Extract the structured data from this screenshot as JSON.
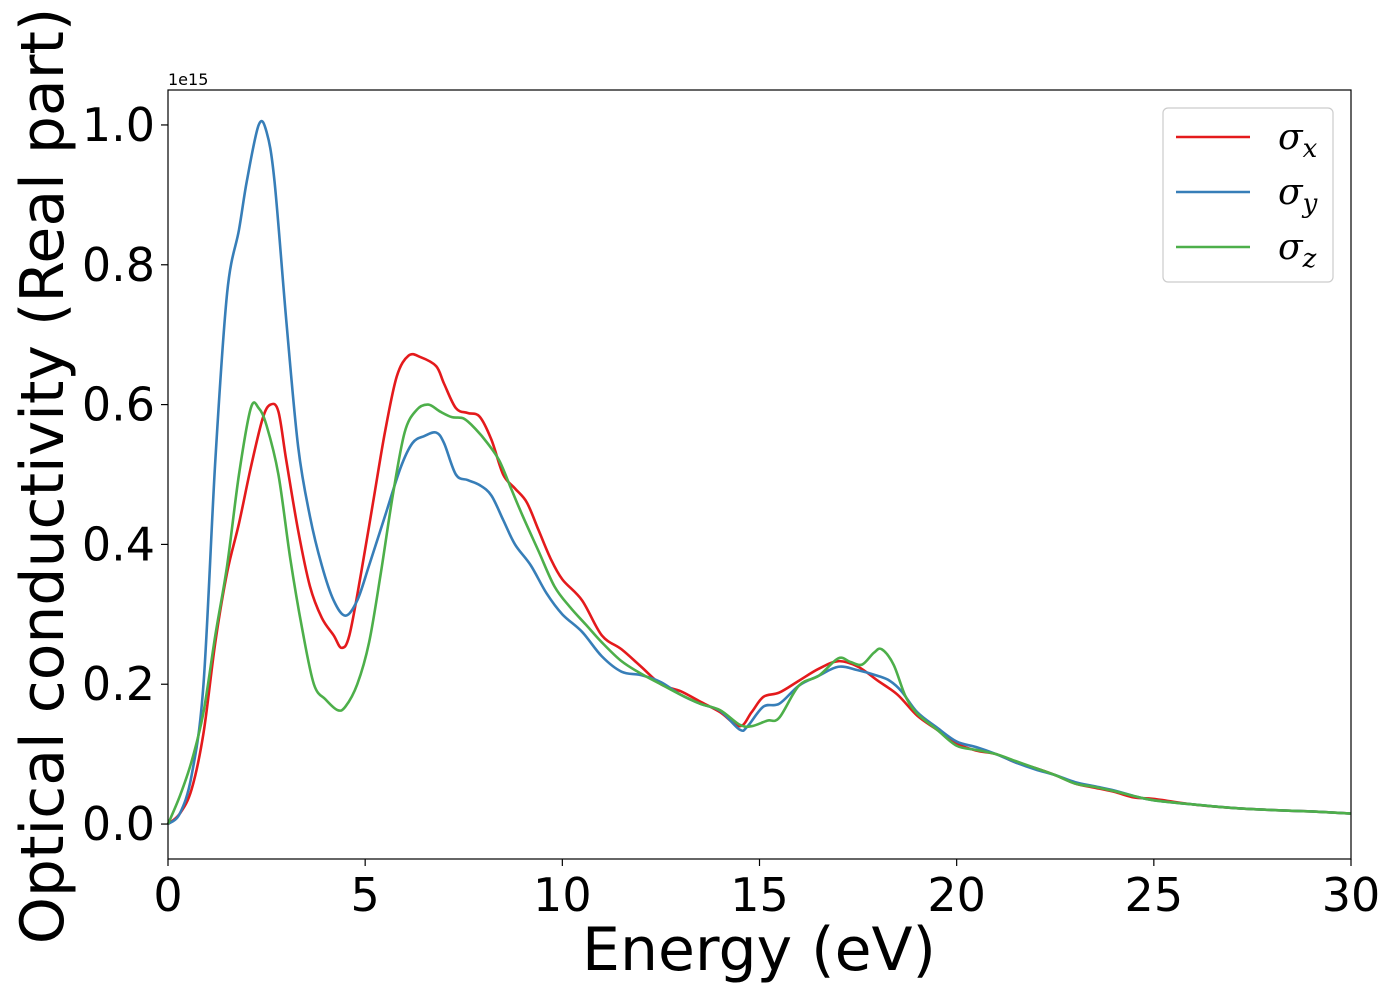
{
  "chart_data": {
    "type": "line",
    "xlabel": "Energy (eV)",
    "ylabel": "Optical conductivity (Real part)",
    "y_offset_text": "1e15",
    "xlim": [
      0,
      30
    ],
    "ylim": [
      -0.05,
      1.05
    ],
    "y_scale_note": "values in units of 1e15",
    "x_ticks": [
      "0",
      "5",
      "10",
      "15",
      "20",
      "25",
      "30"
    ],
    "y_ticks": [
      "0.0",
      "0.2",
      "0.4",
      "0.6",
      "0.8",
      "1.0"
    ],
    "grid": false,
    "legend_position": "top-right",
    "series": [
      {
        "name": "σx",
        "symbol": "σ",
        "sub": "x",
        "color": "#e41a1c",
        "points": [
          [
            0,
            0
          ],
          [
            0.3,
            0.015
          ],
          [
            0.6,
            0.05
          ],
          [
            0.9,
            0.13
          ],
          [
            1.2,
            0.26
          ],
          [
            1.5,
            0.36
          ],
          [
            1.8,
            0.43
          ],
          [
            2.1,
            0.51
          ],
          [
            2.4,
            0.58
          ],
          [
            2.6,
            0.6
          ],
          [
            2.8,
            0.59
          ],
          [
            3.0,
            0.52
          ],
          [
            3.3,
            0.42
          ],
          [
            3.6,
            0.34
          ],
          [
            3.9,
            0.295
          ],
          [
            4.2,
            0.27
          ],
          [
            4.4,
            0.252
          ],
          [
            4.6,
            0.27
          ],
          [
            4.9,
            0.36
          ],
          [
            5.2,
            0.46
          ],
          [
            5.5,
            0.56
          ],
          [
            5.8,
            0.64
          ],
          [
            6.1,
            0.67
          ],
          [
            6.4,
            0.668
          ],
          [
            6.8,
            0.655
          ],
          [
            7.0,
            0.63
          ],
          [
            7.3,
            0.595
          ],
          [
            7.6,
            0.588
          ],
          [
            7.9,
            0.583
          ],
          [
            8.2,
            0.55
          ],
          [
            8.5,
            0.5
          ],
          [
            8.8,
            0.48
          ],
          [
            9.1,
            0.46
          ],
          [
            9.4,
            0.42
          ],
          [
            9.7,
            0.38
          ],
          [
            10,
            0.35
          ],
          [
            10.5,
            0.32
          ],
          [
            11,
            0.27
          ],
          [
            11.5,
            0.25
          ],
          [
            12,
            0.225
          ],
          [
            12.5,
            0.2
          ],
          [
            13,
            0.19
          ],
          [
            13.5,
            0.175
          ],
          [
            14,
            0.16
          ],
          [
            14.5,
            0.14
          ],
          [
            14.8,
            0.16
          ],
          [
            15.1,
            0.182
          ],
          [
            15.5,
            0.188
          ],
          [
            16,
            0.205
          ],
          [
            16.5,
            0.222
          ],
          [
            17,
            0.233
          ],
          [
            17.5,
            0.225
          ],
          [
            18,
            0.205
          ],
          [
            18.5,
            0.185
          ],
          [
            19,
            0.155
          ],
          [
            19.5,
            0.135
          ],
          [
            20,
            0.115
          ],
          [
            20.5,
            0.105
          ],
          [
            21,
            0.1
          ],
          [
            21.5,
            0.088
          ],
          [
            22,
            0.08
          ],
          [
            22.5,
            0.07
          ],
          [
            23,
            0.058
          ],
          [
            23.5,
            0.052
          ],
          [
            24,
            0.046
          ],
          [
            24.5,
            0.038
          ],
          [
            25,
            0.036
          ],
          [
            26,
            0.028
          ],
          [
            27,
            0.023
          ],
          [
            28,
            0.02
          ],
          [
            29,
            0.018
          ],
          [
            30,
            0.015
          ]
        ]
      },
      {
        "name": "σy",
        "symbol": "σ",
        "sub": "y",
        "color": "#377eb8",
        "points": [
          [
            0,
            0
          ],
          [
            0.3,
            0.015
          ],
          [
            0.6,
            0.07
          ],
          [
            0.9,
            0.2
          ],
          [
            1.2,
            0.52
          ],
          [
            1.5,
            0.76
          ],
          [
            1.8,
            0.85
          ],
          [
            2.0,
            0.92
          ],
          [
            2.3,
            1.0
          ],
          [
            2.5,
            0.99
          ],
          [
            2.7,
            0.92
          ],
          [
            3.0,
            0.72
          ],
          [
            3.3,
            0.54
          ],
          [
            3.6,
            0.44
          ],
          [
            3.9,
            0.37
          ],
          [
            4.2,
            0.32
          ],
          [
            4.5,
            0.298
          ],
          [
            4.8,
            0.32
          ],
          [
            5.1,
            0.37
          ],
          [
            5.5,
            0.44
          ],
          [
            5.9,
            0.51
          ],
          [
            6.2,
            0.545
          ],
          [
            6.5,
            0.555
          ],
          [
            6.8,
            0.56
          ],
          [
            7.0,
            0.545
          ],
          [
            7.3,
            0.5
          ],
          [
            7.6,
            0.492
          ],
          [
            7.9,
            0.485
          ],
          [
            8.2,
            0.47
          ],
          [
            8.5,
            0.435
          ],
          [
            8.8,
            0.4
          ],
          [
            9.2,
            0.37
          ],
          [
            9.6,
            0.33
          ],
          [
            10,
            0.3
          ],
          [
            10.5,
            0.275
          ],
          [
            11,
            0.24
          ],
          [
            11.5,
            0.218
          ],
          [
            12,
            0.213
          ],
          [
            12.5,
            0.203
          ],
          [
            13,
            0.185
          ],
          [
            13.5,
            0.172
          ],
          [
            14,
            0.162
          ],
          [
            14.5,
            0.135
          ],
          [
            14.7,
            0.14
          ],
          [
            15.1,
            0.168
          ],
          [
            15.5,
            0.172
          ],
          [
            16,
            0.198
          ],
          [
            16.5,
            0.212
          ],
          [
            17,
            0.225
          ],
          [
            17.5,
            0.22
          ],
          [
            18,
            0.212
          ],
          [
            18.3,
            0.205
          ],
          [
            18.6,
            0.19
          ],
          [
            19,
            0.16
          ],
          [
            19.5,
            0.138
          ],
          [
            20,
            0.118
          ],
          [
            20.5,
            0.11
          ],
          [
            21,
            0.1
          ],
          [
            21.5,
            0.088
          ],
          [
            22,
            0.078
          ],
          [
            22.5,
            0.07
          ],
          [
            23,
            0.06
          ],
          [
            23.5,
            0.054
          ],
          [
            24,
            0.048
          ],
          [
            24.5,
            0.04
          ],
          [
            25,
            0.034
          ],
          [
            26,
            0.028
          ],
          [
            27,
            0.023
          ],
          [
            28,
            0.02
          ],
          [
            29,
            0.018
          ],
          [
            30,
            0.015
          ]
        ]
      },
      {
        "name": "σz",
        "symbol": "σ",
        "sub": "z",
        "color": "#4daf4a",
        "points": [
          [
            0,
            0
          ],
          [
            0.3,
            0.04
          ],
          [
            0.6,
            0.09
          ],
          [
            0.9,
            0.16
          ],
          [
            1.2,
            0.27
          ],
          [
            1.5,
            0.37
          ],
          [
            1.8,
            0.5
          ],
          [
            2.1,
            0.595
          ],
          [
            2.3,
            0.595
          ],
          [
            2.5,
            0.57
          ],
          [
            2.8,
            0.5
          ],
          [
            3.1,
            0.38
          ],
          [
            3.4,
            0.28
          ],
          [
            3.7,
            0.2
          ],
          [
            4.0,
            0.178
          ],
          [
            4.3,
            0.163
          ],
          [
            4.5,
            0.168
          ],
          [
            4.8,
            0.2
          ],
          [
            5.1,
            0.26
          ],
          [
            5.4,
            0.36
          ],
          [
            5.7,
            0.47
          ],
          [
            6.0,
            0.56
          ],
          [
            6.3,
            0.592
          ],
          [
            6.6,
            0.6
          ],
          [
            6.9,
            0.59
          ],
          [
            7.2,
            0.582
          ],
          [
            7.5,
            0.58
          ],
          [
            7.8,
            0.565
          ],
          [
            8.1,
            0.545
          ],
          [
            8.4,
            0.52
          ],
          [
            8.7,
            0.48
          ],
          [
            9.0,
            0.44
          ],
          [
            9.4,
            0.39
          ],
          [
            9.8,
            0.34
          ],
          [
            10.2,
            0.31
          ],
          [
            10.6,
            0.285
          ],
          [
            11,
            0.26
          ],
          [
            11.5,
            0.233
          ],
          [
            12,
            0.215
          ],
          [
            12.5,
            0.2
          ],
          [
            13,
            0.185
          ],
          [
            13.5,
            0.172
          ],
          [
            14,
            0.163
          ],
          [
            14.5,
            0.142
          ],
          [
            14.8,
            0.14
          ],
          [
            15.2,
            0.148
          ],
          [
            15.5,
            0.152
          ],
          [
            16,
            0.198
          ],
          [
            16.5,
            0.212
          ],
          [
            17,
            0.237
          ],
          [
            17.3,
            0.232
          ],
          [
            17.6,
            0.228
          ],
          [
            17.9,
            0.245
          ],
          [
            18.1,
            0.25
          ],
          [
            18.4,
            0.228
          ],
          [
            18.7,
            0.183
          ],
          [
            19,
            0.158
          ],
          [
            19.5,
            0.135
          ],
          [
            20,
            0.112
          ],
          [
            20.5,
            0.106
          ],
          [
            21,
            0.1
          ],
          [
            21.5,
            0.09
          ],
          [
            22,
            0.08
          ],
          [
            22.5,
            0.07
          ],
          [
            23,
            0.058
          ],
          [
            23.5,
            0.053
          ],
          [
            24,
            0.047
          ],
          [
            24.5,
            0.04
          ],
          [
            25,
            0.034
          ],
          [
            26,
            0.028
          ],
          [
            27,
            0.023
          ],
          [
            28,
            0.02
          ],
          [
            29,
            0.018
          ],
          [
            30,
            0.015
          ]
        ]
      }
    ]
  }
}
